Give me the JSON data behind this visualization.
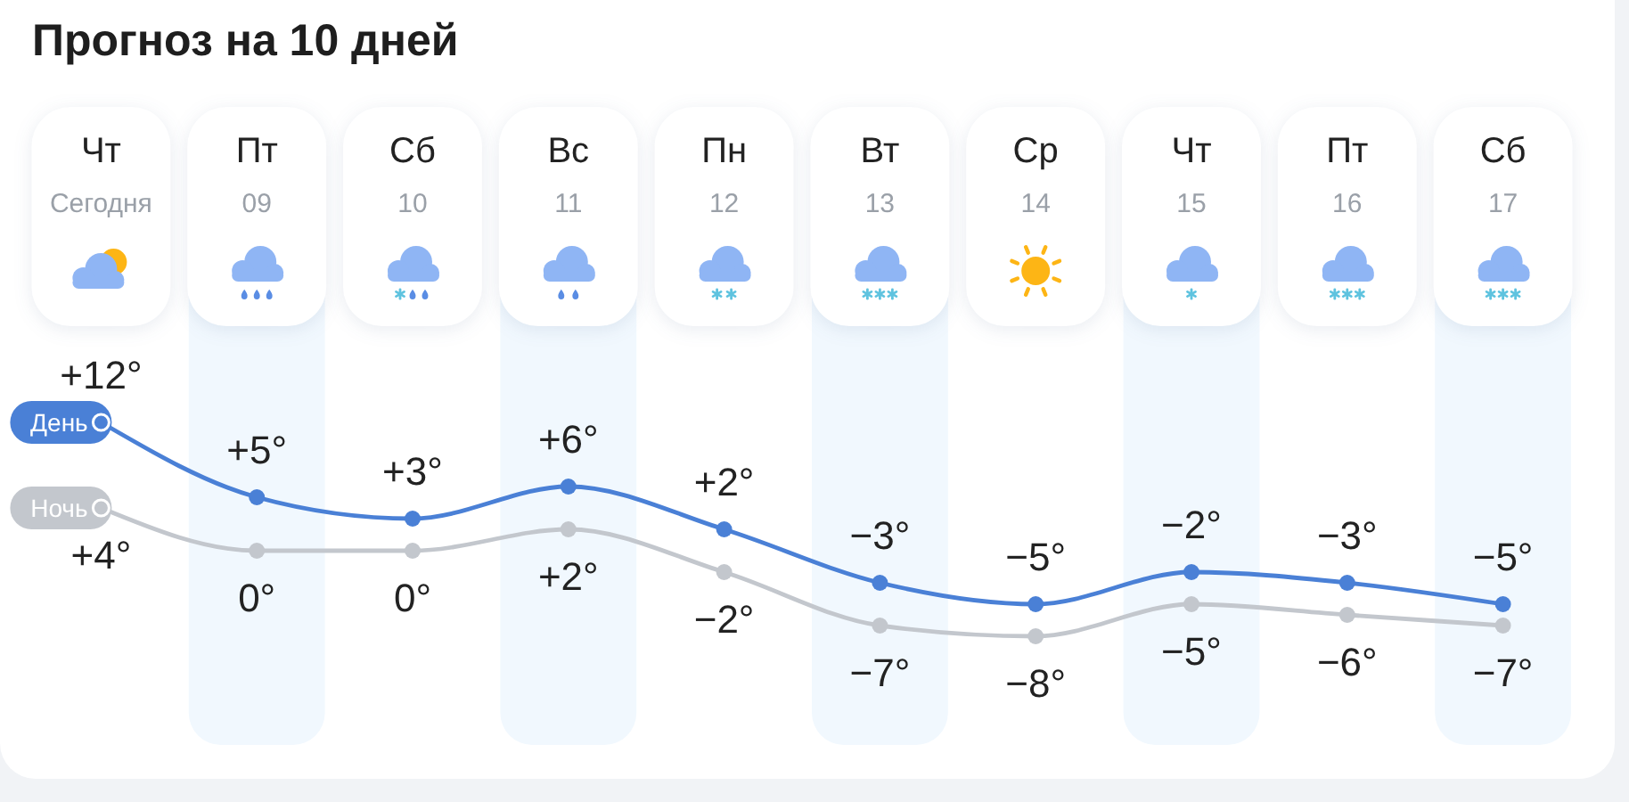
{
  "chart_data": {
    "type": "line",
    "title": "Прогноз на 10 дней",
    "categories": [
      "Чт\nСегодня",
      "Пт\n09",
      "Сб\n10",
      "Вс\n11",
      "Пн\n12",
      "Вт\n13",
      "Ср\n14",
      "Чт\n15",
      "Пт\n16",
      "Сб\n17"
    ],
    "series": [
      {
        "name": "День",
        "color": "#4a80d6",
        "values": [
          12,
          5,
          3,
          6,
          2,
          -3,
          -5,
          -2,
          -3,
          -5
        ],
        "value_labels": [
          "+12°",
          "+5°",
          "+3°",
          "+6°",
          "+2°",
          "−3°",
          "−5°",
          "−2°",
          "−3°",
          "−5°"
        ]
      },
      {
        "name": "Ночь",
        "color": "#c3c7cd",
        "values": [
          4,
          0,
          0,
          2,
          -2,
          -7,
          -8,
          -5,
          -6,
          -7
        ],
        "value_labels": [
          "+4°",
          "0°",
          "0°",
          "+2°",
          "−2°",
          "−7°",
          "−8°",
          "−5°",
          "−6°",
          "−7°"
        ]
      }
    ],
    "marker": "circle",
    "line_style": "solid",
    "bands": [
      {
        "axis": "x",
        "from": "Пт\n09",
        "to": "Пт\n09",
        "color": "#f1f8fe"
      },
      {
        "axis": "x",
        "from": "Вс\n11",
        "to": "Вс\n11",
        "color": "#f1f8fe"
      },
      {
        "axis": "x",
        "from": "Вт\n13",
        "to": "Вт\n13",
        "color": "#f1f8fe"
      },
      {
        "axis": "x",
        "from": "Чт\n15",
        "to": "Чт\n15",
        "color": "#f1f8fe"
      },
      {
        "axis": "x",
        "from": "Сб\n17",
        "to": "Сб\n17",
        "color": "#f1f8fe"
      }
    ]
  }
}
